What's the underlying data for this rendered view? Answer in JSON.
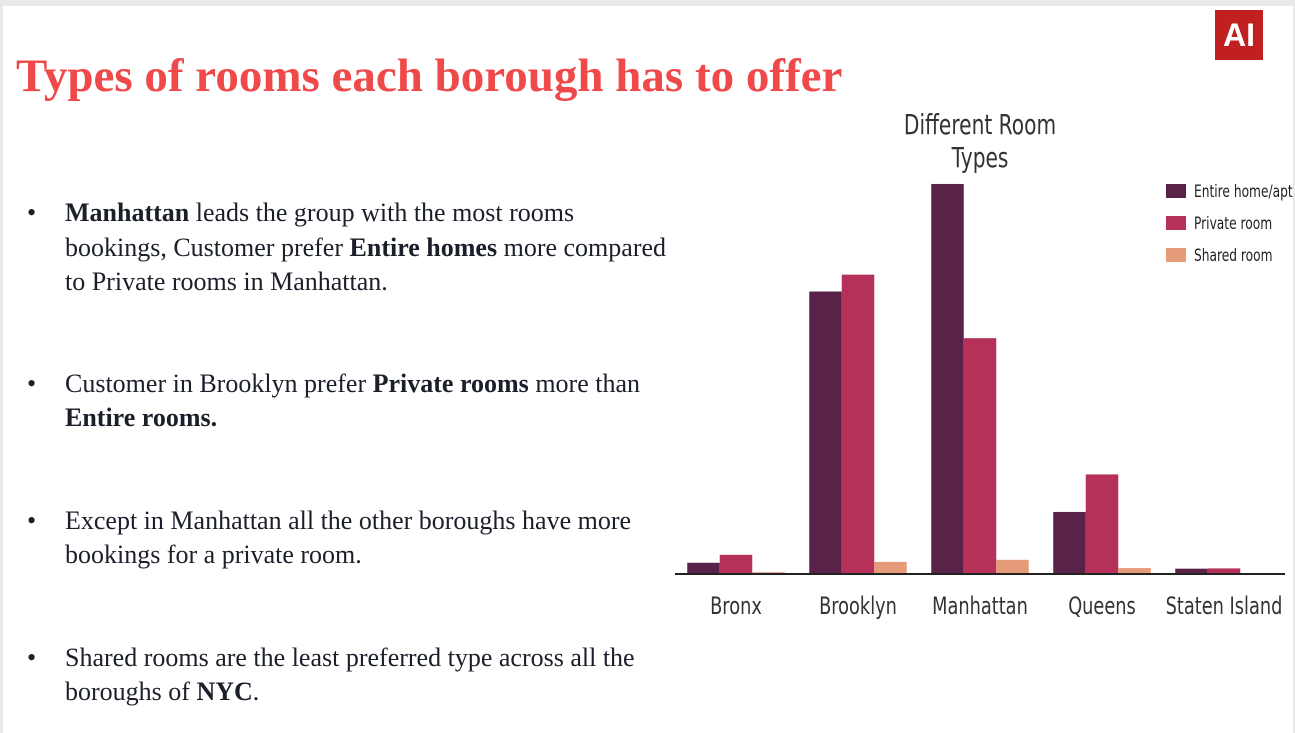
{
  "logo": {
    "text": "AI"
  },
  "slide": {
    "title": "Types of rooms each borough has to offer"
  },
  "bullets": [
    {
      "parts": [
        {
          "text": "Manhattan",
          "bold": true
        },
        {
          "text": " leads the group with the most rooms bookings, Customer prefer ",
          "bold": false
        },
        {
          "text": "Entire homes",
          "bold": true
        },
        {
          "text": " more compared to Private rooms in Manhattan.",
          "bold": false
        }
      ]
    },
    {
      "parts": [
        {
          "text": "Customer in Brooklyn prefer ",
          "bold": false
        },
        {
          "text": "Private rooms",
          "bold": true
        },
        {
          "text": " more than  ",
          "bold": false
        },
        {
          "text": "Entire rooms.",
          "bold": true
        }
      ]
    },
    {
      "parts": [
        {
          "text": "Except in Manhattan all the other boroughs have more bookings for a private room.",
          "bold": false
        }
      ]
    },
    {
      "parts": [
        {
          "text": "Shared rooms are the least preferred type across all the boroughs of ",
          "bold": false
        },
        {
          "text": "NYC",
          "bold": true
        },
        {
          "text": ".",
          "bold": false
        }
      ]
    }
  ],
  "chart_data": {
    "type": "bar",
    "title": "Different Room Types",
    "xlabel": "",
    "ylabel": "",
    "categories": [
      "Bronx",
      "Brooklyn",
      "Manhattan",
      "Queens",
      "Staten Island"
    ],
    "series": [
      {
        "name": "Entire home/apt",
        "color": "#5a2249",
        "values": [
          380,
          9560,
          13200,
          2100,
          180
        ]
      },
      {
        "name": "Private room",
        "color": "#b5315a",
        "values": [
          650,
          10130,
          7980,
          3370,
          190
        ]
      },
      {
        "name": "Shared room",
        "color": "#e59a78",
        "values": [
          60,
          410,
          480,
          200,
          10
        ]
      }
    ],
    "ylim": [
      0,
      13300
    ],
    "legend": "top-right",
    "grid": false
  }
}
